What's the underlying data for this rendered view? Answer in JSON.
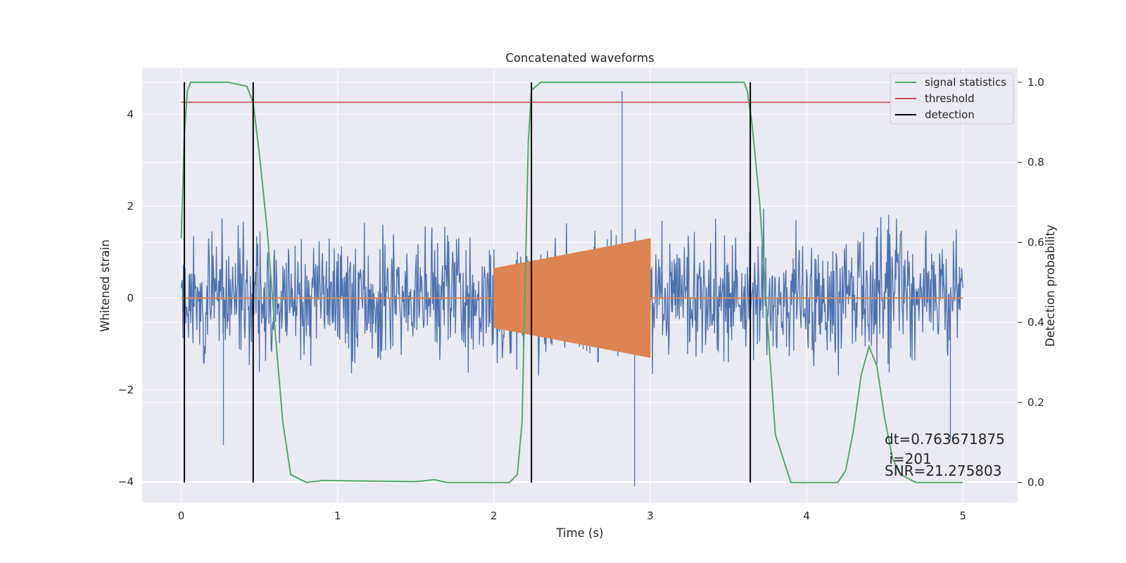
{
  "chart_data": {
    "type": "line",
    "title": "Concatenated waveforms",
    "xlabel": "Time (s)",
    "ylabel": "Whitened strain",
    "ylabel_right": "Detection probability",
    "xlim": [
      -0.25,
      5.35
    ],
    "ylim": [
      -4.45,
      5.0
    ],
    "ylim_right": [
      -0.05,
      1.035
    ],
    "x_ticks": [
      0,
      1,
      2,
      3,
      4,
      5
    ],
    "y_ticks": [
      -4,
      -2,
      0,
      2,
      4
    ],
    "y_ticks_right": [
      0.0,
      0.2,
      0.4,
      0.6,
      0.8,
      1.0
    ],
    "grid": true,
    "legend_position": "top-right",
    "colors": {
      "background": "#eaeaf2",
      "strain": "#4c72b0",
      "template": "#dd8452",
      "signal_statistics": "#55a868",
      "threshold": "#c44e52",
      "detection": "#000000"
    },
    "series": [
      {
        "name": "",
        "role": "whitened-strain",
        "axis": "left",
        "x_range": [
          0,
          5
        ],
        "noise_envelope": [
          -3.4,
          3.5
        ],
        "notable_extremes": [
          {
            "x": 2.82,
            "y": 4.5
          },
          {
            "x": 2.9,
            "y": -4.1
          },
          {
            "x": 0.27,
            "y": -3.2
          },
          {
            "x": 4.92,
            "y": -3.1
          }
        ]
      },
      {
        "name": "",
        "role": "injected-template",
        "axis": "left",
        "x_range": [
          0,
          5
        ],
        "chirp_start": 2.0,
        "chirp_end": 3.0,
        "amplitude_start": 0.65,
        "amplitude_end": 1.3
      },
      {
        "name": "signal statistics",
        "axis": "right",
        "x": [
          0.0,
          0.02,
          0.04,
          0.06,
          0.1,
          0.3,
          0.42,
          0.46,
          0.5,
          0.55,
          0.6,
          0.65,
          0.7,
          0.8,
          0.9,
          1.5,
          1.62,
          1.7,
          2.1,
          2.15,
          2.18,
          2.2,
          2.22,
          2.24,
          2.3,
          2.5,
          3.6,
          3.62,
          3.65,
          3.7,
          3.75,
          3.8,
          3.9,
          4.2,
          4.25,
          4.3,
          4.35,
          4.4,
          4.45,
          4.5,
          4.55,
          4.6,
          4.65,
          4.7,
          4.8,
          5.0
        ],
        "y": [
          0.61,
          0.87,
          0.98,
          1.0,
          1.0,
          1.0,
          0.99,
          0.95,
          0.82,
          0.63,
          0.38,
          0.15,
          0.02,
          0.0,
          0.005,
          0.002,
          0.007,
          0.0,
          0.0,
          0.02,
          0.15,
          0.5,
          0.85,
          0.98,
          1.0,
          1.0,
          1.0,
          0.98,
          0.9,
          0.7,
          0.4,
          0.12,
          0.0,
          0.0,
          0.03,
          0.13,
          0.27,
          0.34,
          0.29,
          0.16,
          0.06,
          0.02,
          0.01,
          0.0,
          0.0,
          0.0
        ]
      },
      {
        "name": "threshold",
        "axis": "right",
        "x": [
          0,
          5.05
        ],
        "y": [
          0.95,
          0.95
        ]
      },
      {
        "name": "detection",
        "axis": "right",
        "vertical_lines_x": [
          0.02,
          0.46,
          2.24,
          3.64
        ],
        "y_range": [
          0.0,
          1.0
        ]
      }
    ],
    "annotations": {
      "dt": "dt=0.763671875",
      "index": " i=201",
      "snr": "SNR=21.275803"
    }
  }
}
